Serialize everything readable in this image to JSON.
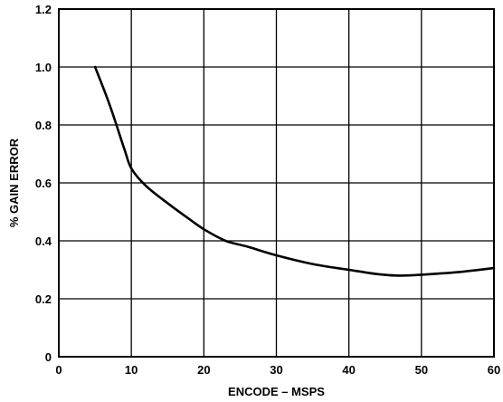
{
  "chart_data": {
    "type": "line",
    "title": "",
    "xlabel": "ENCODE – MSPS",
    "ylabel": "% GAIN ERROR",
    "xlim": [
      0,
      60
    ],
    "ylim": [
      0,
      1.2
    ],
    "x_ticks": [
      0,
      10,
      20,
      30,
      40,
      50,
      60
    ],
    "y_ticks": [
      0,
      0.2,
      0.4,
      0.6,
      0.8,
      1.0,
      1.2
    ],
    "x_tick_labels": [
      "0",
      "10",
      "20",
      "30",
      "40",
      "50",
      "60"
    ],
    "y_tick_labels": [
      "0",
      "0.2",
      "0.4",
      "0.6",
      "0.8",
      "1.0",
      "1.2"
    ],
    "grid": true,
    "series": [
      {
        "color": "#000000",
        "points": [
          [
            5,
            1.0
          ],
          [
            7,
            0.87
          ],
          [
            9,
            0.72
          ],
          [
            10,
            0.65
          ],
          [
            12,
            0.59
          ],
          [
            15,
            0.53
          ],
          [
            18,
            0.475
          ],
          [
            20,
            0.44
          ],
          [
            23,
            0.4
          ],
          [
            26,
            0.38
          ],
          [
            30,
            0.35
          ],
          [
            35,
            0.32
          ],
          [
            40,
            0.3
          ],
          [
            44,
            0.285
          ],
          [
            47,
            0.28
          ],
          [
            50,
            0.283
          ],
          [
            55,
            0.292
          ],
          [
            60,
            0.306
          ]
        ]
      }
    ]
  }
}
